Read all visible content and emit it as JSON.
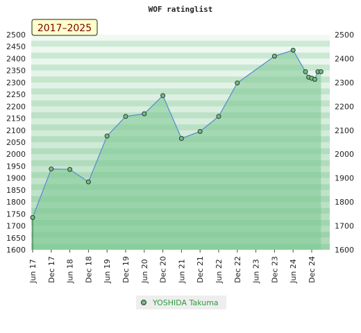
{
  "chart_data": {
    "type": "area",
    "title": "WOF ratinglist",
    "range_label": "2017–2025",
    "xlabel": "",
    "ylabel": "",
    "ylim": [
      1600,
      2500
    ],
    "yticks": [
      1600,
      1650,
      1700,
      1750,
      1800,
      1850,
      1900,
      1950,
      2000,
      2050,
      2100,
      2150,
      2200,
      2250,
      2300,
      2350,
      2400,
      2450,
      2500
    ],
    "yticks_right": [
      1600,
      1700,
      1800,
      1900,
      2000,
      2100,
      2200,
      2300,
      2400,
      2500
    ],
    "x_tick_labels": [
      "Jun 17",
      "Dec 17",
      "Jun 18",
      "Dec 18",
      "Jun 19",
      "Dec 19",
      "Jun 20",
      "Dec 20",
      "Jun 21",
      "Dec 21",
      "Jun 22",
      "Dec 22",
      "Jun 23",
      "Dec 23",
      "Jun 24",
      "Dec 24"
    ],
    "legend_position": "bottom-center",
    "grid": true,
    "colors": {
      "area": "#7ec894",
      "line": "#5b8fd0",
      "marker": "#6fbf7f",
      "legend_text": "#2f9a3f"
    },
    "series": [
      {
        "name": "YOSHIDA Takuma",
        "points": [
          {
            "x": "Jun 17",
            "y": 1735
          },
          {
            "x": "Dec 17",
            "y": 1938
          },
          {
            "x": "Jun 18",
            "y": 1936
          },
          {
            "x": "Dec 18",
            "y": 1884
          },
          {
            "x": "Jun 19",
            "y": 2076
          },
          {
            "x": "Dec 19",
            "y": 2158
          },
          {
            "x": "Jun 20",
            "y": 2169
          },
          {
            "x": "Dec 20",
            "y": 2245
          },
          {
            "x": "Jun 21",
            "y": 2066
          },
          {
            "x": "Dec 21",
            "y": 2095
          },
          {
            "x": "Jun 22",
            "y": 2158
          },
          {
            "x": "Dec 22",
            "y": 2298
          },
          {
            "x": "Dec 23",
            "y": 2410
          },
          {
            "x": "Jun 24",
            "y": 2435
          },
          {
            "x": "Oct 24",
            "y": 2345
          },
          {
            "x": "Nov 24",
            "y": 2322
          },
          {
            "x": "Dec 24",
            "y": 2318
          },
          {
            "x": "Jan 25",
            "y": 2313
          },
          {
            "x": "Feb 25",
            "y": 2345
          },
          {
            "x": "Mar 25",
            "y": 2345
          }
        ]
      }
    ]
  }
}
